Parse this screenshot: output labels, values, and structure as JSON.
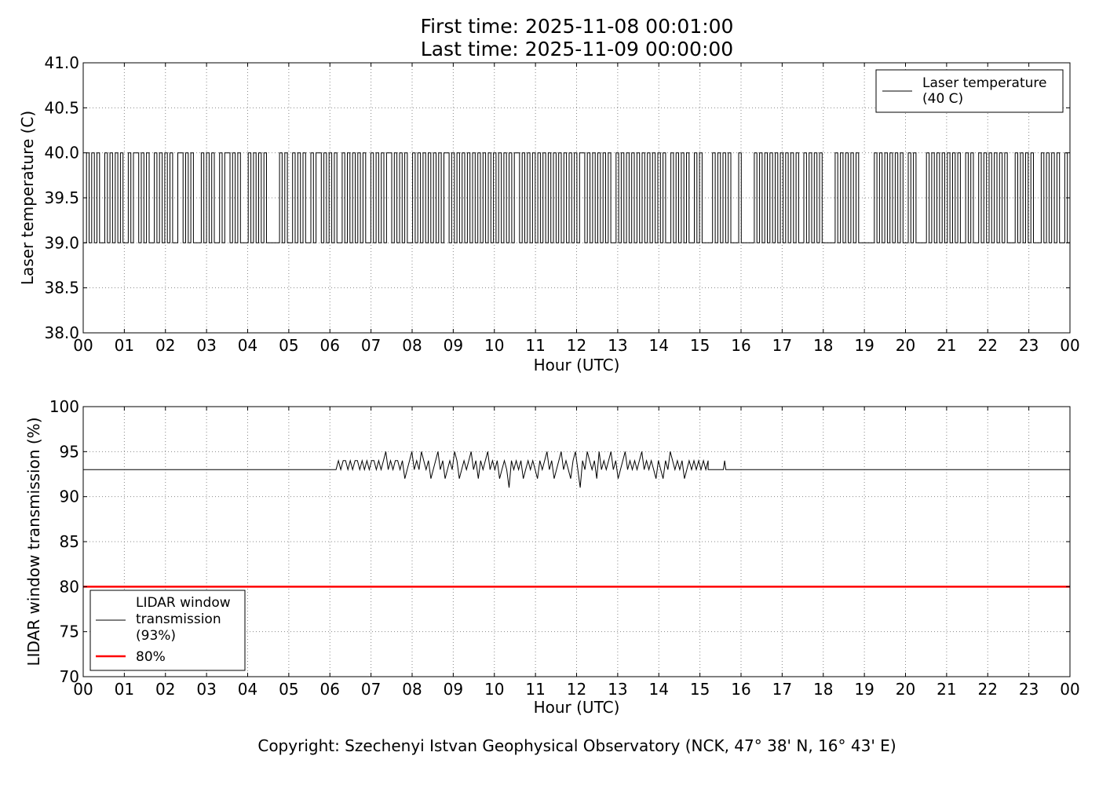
{
  "title": {
    "line1": "First time: 2025-11-08 00:01:00",
    "line2": "Last time: 2025-11-09 00:00:00"
  },
  "copyright": "Copyright: Szechenyi Istvan Geophysical Observatory (NCK, 47° 38' N, 16° 43' E)",
  "chart_data": [
    {
      "type": "line",
      "ylabel": "Laser temperature (C)",
      "xlabel": "Hour (UTC)",
      "xlim": [
        0,
        24
      ],
      "ylim": [
        38.0,
        41.0
      ],
      "xticks": [
        "00",
        "01",
        "02",
        "03",
        "04",
        "05",
        "06",
        "07",
        "08",
        "09",
        "10",
        "11",
        "12",
        "13",
        "14",
        "15",
        "16",
        "17",
        "18",
        "19",
        "20",
        "21",
        "22",
        "23",
        "00"
      ],
      "yticks": [
        "38.0",
        "38.5",
        "39.0",
        "39.5",
        "40.0",
        "40.5",
        "41.0"
      ],
      "grid": true,
      "legend_position": "top-right",
      "series": [
        {
          "name": "Laser temperature\n(40 C)",
          "legend_lines": [
            "Laser temperature",
            "(40 C)"
          ],
          "color": "#000000",
          "values_description_levels": [
            39.0,
            40.0
          ],
          "x_start": 0.0167,
          "x_end": 24.0,
          "values": [
            39,
            40,
            39,
            40,
            39,
            40,
            39,
            39,
            40,
            39,
            40,
            39,
            40,
            39,
            40,
            39,
            39,
            40,
            39,
            40,
            40,
            39,
            40,
            39,
            40,
            39,
            39,
            40,
            39,
            40,
            39,
            40,
            39,
            40,
            39,
            39,
            40,
            40,
            39,
            40,
            39,
            40,
            39,
            39,
            39,
            40,
            39,
            40,
            39,
            40,
            39,
            39,
            40,
            39,
            40,
            40,
            39,
            40,
            39,
            40,
            39,
            39,
            39,
            40,
            39,
            40,
            39,
            40,
            39,
            40,
            39,
            39,
            39,
            39,
            39,
            40,
            39,
            40,
            39,
            39,
            40,
            39,
            40,
            39,
            40,
            39,
            39,
            40,
            39,
            40,
            40,
            39,
            40,
            39,
            40,
            39,
            40,
            39,
            39,
            40,
            39,
            40,
            39,
            40,
            39,
            40,
            39,
            40,
            39,
            39,
            40,
            39,
            40,
            39,
            40,
            39,
            40,
            40,
            39,
            40,
            39,
            40,
            39,
            40,
            39,
            39,
            40,
            39,
            40,
            39,
            40,
            39,
            40,
            39,
            40,
            39,
            40,
            39,
            40,
            40,
            39,
            40,
            39,
            40,
            39,
            40,
            39,
            40,
            39,
            40,
            39,
            40,
            39,
            40,
            39,
            40,
            39,
            40,
            39,
            40,
            39,
            40,
            39,
            40,
            39,
            40,
            40,
            39,
            40,
            39,
            40,
            39,
            40,
            39,
            40,
            39,
            40,
            39,
            40,
            39,
            40,
            39,
            40,
            39,
            40,
            39,
            40,
            39,
            40,
            39,
            40,
            40,
            39,
            40,
            39,
            40,
            39,
            40,
            39,
            40,
            39,
            40,
            39,
            39,
            40,
            39,
            40,
            39,
            40,
            39,
            40,
            39,
            40,
            39,
            40,
            39,
            40,
            39,
            40,
            39,
            40,
            39,
            40,
            39,
            39,
            40,
            39,
            40,
            39,
            40,
            39,
            40,
            39,
            39,
            40,
            39,
            40,
            39,
            39,
            39,
            39,
            40,
            39,
            40,
            39,
            40,
            39,
            40,
            39,
            39,
            39,
            40,
            39,
            39,
            39,
            39,
            39,
            40,
            39,
            40,
            39,
            40,
            39,
            40,
            39,
            40,
            39,
            40,
            39,
            40,
            39,
            40,
            39,
            40,
            39,
            39,
            40,
            39,
            40,
            39,
            40,
            39,
            40,
            39,
            39,
            39,
            39,
            39,
            40,
            39,
            40,
            39,
            40,
            39,
            40,
            39,
            40,
            39,
            39,
            39,
            39,
            39,
            39,
            40,
            39,
            40,
            39,
            40,
            39,
            40,
            39,
            40,
            39,
            40,
            39,
            39,
            40,
            39,
            40,
            39,
            39,
            39,
            39,
            40,
            39,
            40,
            39,
            40,
            39,
            40,
            39,
            40,
            39,
            40,
            39,
            40,
            39,
            39,
            40,
            39,
            40,
            39,
            39,
            40,
            39,
            40,
            39,
            40,
            39,
            40,
            39,
            40,
            39,
            40,
            39,
            39,
            39,
            40,
            39,
            40,
            39,
            40,
            39,
            40,
            39,
            39,
            39,
            40,
            39,
            40,
            39,
            40,
            39,
            40,
            39,
            39,
            40,
            39,
            39
          ]
        }
      ]
    },
    {
      "type": "line",
      "ylabel": "LIDAR window transmission (%)",
      "xlabel": "Hour (UTC)",
      "xlim": [
        0,
        24
      ],
      "ylim": [
        70,
        100
      ],
      "xticks": [
        "00",
        "01",
        "02",
        "03",
        "04",
        "05",
        "06",
        "07",
        "08",
        "09",
        "10",
        "11",
        "12",
        "13",
        "14",
        "15",
        "16",
        "17",
        "18",
        "19",
        "20",
        "21",
        "22",
        "23",
        "00"
      ],
      "yticks": [
        "70",
        "75",
        "80",
        "85",
        "90",
        "95",
        "100"
      ],
      "grid": true,
      "legend_position": "lower-left",
      "series": [
        {
          "name": "LIDAR window\ntransmission\n(93%)",
          "legend_lines": [
            "LIDAR window",
            "transmission",
            "(93%)"
          ],
          "color": "#000000",
          "baseline": 93,
          "active_start": 6.15,
          "active_end": 15.2,
          "values": [
            93,
            94,
            93,
            94,
            94,
            93,
            94,
            93,
            94,
            94,
            93,
            94,
            93,
            94,
            93,
            94,
            94,
            93,
            94,
            93,
            94,
            95,
            93,
            94,
            93,
            94,
            94,
            93,
            94,
            92,
            93,
            94,
            95,
            93,
            94,
            93,
            95,
            94,
            93,
            94,
            92,
            93,
            94,
            95,
            93,
            94,
            92,
            93,
            94,
            93,
            95,
            94,
            92,
            93,
            94,
            93,
            94,
            95,
            93,
            94,
            92,
            94,
            93,
            94,
            95,
            93,
            94,
            93,
            94,
            92,
            93,
            94,
            93,
            91,
            94,
            93,
            94,
            93,
            94,
            92,
            93,
            94,
            93,
            94,
            93,
            92,
            94,
            93,
            94,
            95,
            93,
            94,
            92,
            93,
            94,
            95,
            93,
            94,
            93,
            92,
            94,
            95,
            93,
            91,
            94,
            93,
            95,
            94,
            93,
            94,
            92,
            95,
            93,
            94,
            93,
            94,
            95,
            93,
            94,
            92,
            93,
            94,
            95,
            93,
            94,
            93,
            94,
            93,
            94,
            95,
            93,
            94,
            93,
            94,
            93,
            92,
            94,
            93,
            92,
            94,
            93,
            95,
            94,
            93,
            94,
            93,
            94,
            92,
            93,
            94,
            93,
            94,
            93,
            94,
            93,
            94,
            93,
            94
          ],
          "spike": {
            "x": 15.6,
            "value": 94
          }
        },
        {
          "name": "80%",
          "color": "#ff0000",
          "constant": 80
        }
      ]
    }
  ]
}
